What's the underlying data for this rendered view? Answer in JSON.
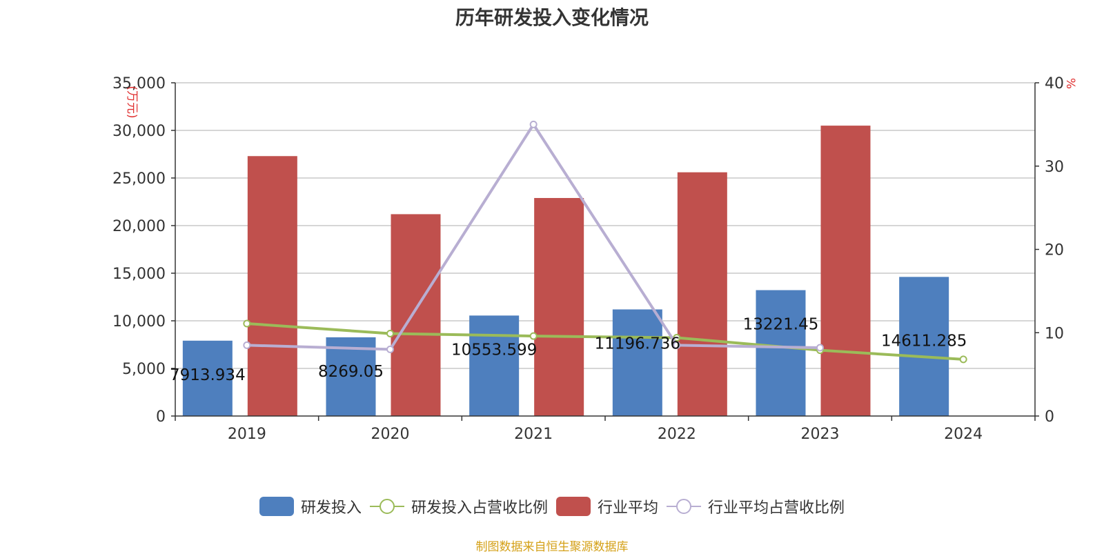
{
  "title": "历年研发投入变化情况",
  "source_note": "制图数据来自恒生聚源数据库",
  "left_axis_unit": "(万元)",
  "right_axis_unit": "%",
  "colors": {
    "rd_bar": "#4e7fbe",
    "industry_bar": "#c0504d",
    "rd_ratio_line": "#9bbb59",
    "industry_ratio_line": "#b8aed2",
    "axis_unit": "#e03030",
    "source_note": "#d4a017"
  },
  "legend": [
    {
      "label": "研发投入",
      "kind": "bar",
      "color": "#4e7fbe"
    },
    {
      "label": "研发投入占营收比例",
      "kind": "line",
      "color": "#9bbb59"
    },
    {
      "label": "行业平均",
      "kind": "bar",
      "color": "#c0504d"
    },
    {
      "label": "行业平均占营收比例",
      "kind": "line",
      "color": "#b8aed2"
    }
  ],
  "chart_data": {
    "type": "bar",
    "categories": [
      "2019",
      "2020",
      "2021",
      "2022",
      "2023",
      "2024"
    ],
    "y_left": {
      "min": 0,
      "max": 35000,
      "ticks": [
        "0",
        "5,000",
        "10,000",
        "15,000",
        "20,000",
        "25,000",
        "30,000",
        "35,000"
      ],
      "unit": "(万元)"
    },
    "y_right": {
      "min": 0,
      "max": 40,
      "ticks": [
        "0",
        "10",
        "20",
        "30",
        "40"
      ],
      "unit": "%"
    },
    "grid": true,
    "legend_position": "bottom",
    "series": [
      {
        "name": "研发投入",
        "type": "bar",
        "axis": "left",
        "values": [
          7913.934,
          8269.05,
          10553.599,
          11196.736,
          13221.45,
          14611.285
        ],
        "labels": [
          "7913.934",
          "8269.05",
          "10553.599",
          "11196.736",
          "13221.45",
          "14611.285"
        ]
      },
      {
        "name": "行业平均",
        "type": "bar",
        "axis": "left",
        "values": [
          27300,
          21200,
          22900,
          25600,
          30500,
          null
        ]
      },
      {
        "name": "研发投入占营收比例",
        "type": "line",
        "axis": "right",
        "values": [
          11.1,
          9.9,
          9.6,
          9.4,
          7.9,
          6.8
        ]
      },
      {
        "name": "行业平均占营收比例",
        "type": "line",
        "axis": "right",
        "values": [
          8.5,
          8.0,
          35.0,
          8.5,
          8.2,
          null
        ]
      }
    ]
  }
}
